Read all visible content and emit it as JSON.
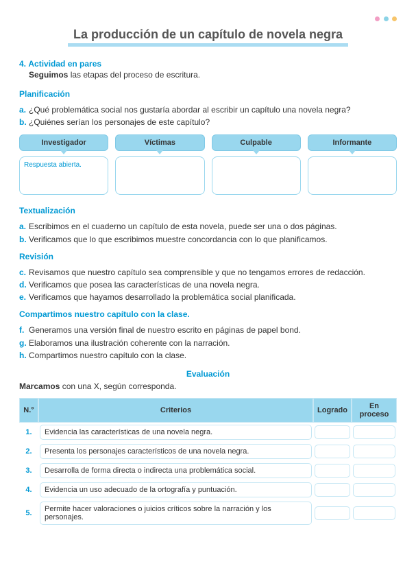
{
  "colors": {
    "dot1": "#f29ec4",
    "dot2": "#8bd3e6",
    "dot3": "#f7c56b"
  },
  "title": "La producción de un capítulo de novela negra",
  "activity": {
    "num": "4.",
    "label": "Actividad en pares"
  },
  "subline": {
    "bold": "Seguimos",
    "rest": " las etapas del proceso de escritura."
  },
  "planif": {
    "h": "Planificación",
    "a": "¿Qué problemática social nos gustaría abordar al escribir un capítulo una novela negra?",
    "b": "¿Quiénes serían los personajes de este capítulo?"
  },
  "roles": [
    "Investigador",
    "Víctimas",
    "Culpable",
    "Informante"
  ],
  "boxAnswer": "Respuesta abierta.",
  "textu": {
    "h": "Textualización",
    "a": "Escribimos en el cuaderno un capítulo de esta novela, puede ser una o dos páginas.",
    "b": "Verificamos que lo que escribimos muestre concordancia con lo que planificamos."
  },
  "rev": {
    "h": "Revisión",
    "c": "Revisamos que nuestro capítulo sea comprensible y que no tengamos errores de redacción.",
    "d": "Verificamos que posea las características de una novela negra.",
    "e": "Verificamos que hayamos desarrollado la problemática social planificada."
  },
  "pub": {
    "h": "Compartimos nuestro capítulo con la clase.",
    "f": "Generamos una versión final de nuestro escrito en páginas de papel bond.",
    "g": "Elaboramos una ilustración coherente con la narración."
  },
  "evalH": "Evaluación",
  "mark": {
    "bold": "Marcamos",
    "rest": " con una X, según corresponda."
  },
  "table": {
    "headers": {
      "n": "N.°",
      "c": "Criterios",
      "l": "Logrado",
      "p": "En proceso"
    },
    "rows": [
      {
        "n": "1.",
        "c": "Evidencia las características de una novela negra."
      },
      {
        "n": "2.",
        "c": "Presenta los personajes característicos de una novela negra."
      },
      {
        "n": "3.",
        "c": "Desarrolla de forma directa o indirecta una problemática social."
      },
      {
        "n": "4.",
        "c": "Evidencia un uso adecuado de la ortografía y puntuación."
      },
      {
        "n": "5.",
        "c": "Permite hacer valoraciones o juicios críticos sobre la narración y los personajes."
      }
    ]
  }
}
